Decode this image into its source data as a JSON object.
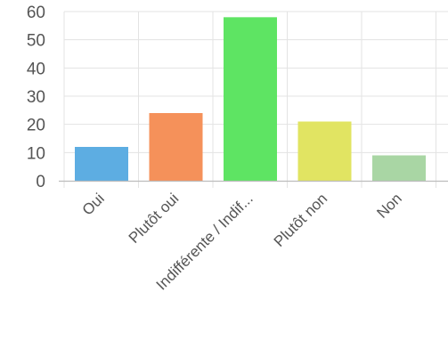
{
  "chart_data": {
    "type": "bar",
    "categories": [
      "Oui",
      "Plutôt oui",
      "Indifférente / Indif...",
      "Plutôt non",
      "Non"
    ],
    "values": [
      12,
      24,
      58,
      21,
      9
    ],
    "colors": [
      "#5dade2",
      "#f5915a",
      "#5ee463",
      "#e1e462",
      "#a9d6a4"
    ],
    "title": "",
    "xlabel": "",
    "ylabel": "",
    "ylim": [
      0,
      60
    ],
    "yticks": [
      0,
      10,
      20,
      30,
      40,
      50,
      60
    ],
    "grid": true,
    "legend": "none"
  }
}
